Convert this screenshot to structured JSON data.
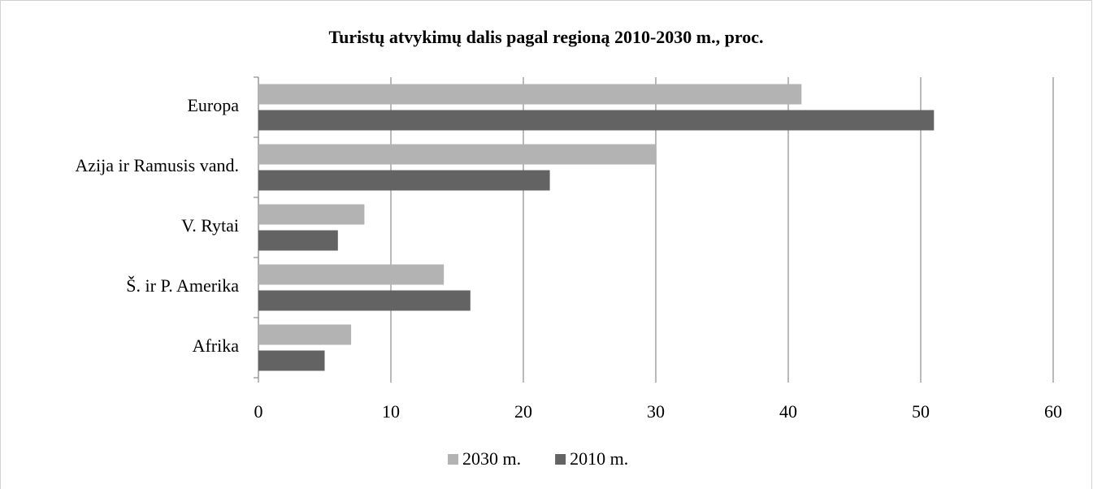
{
  "chart_data": {
    "type": "bar",
    "orientation": "horizontal",
    "title": "Turistų atvykimų dalis pagal regioną 2010-2030 m., proc.",
    "categories": [
      "Europa",
      "Azija ir Ramusis vand.",
      "V. Rytai",
      "Š. ir P. Amerika",
      "Afrika"
    ],
    "series": [
      {
        "name": "2030 m.",
        "color": "#b3b3b3",
        "values": [
          41,
          30,
          8,
          14,
          7
        ]
      },
      {
        "name": "2010 m.",
        "color": "#636363",
        "values": [
          51,
          22,
          6,
          16,
          5
        ]
      }
    ],
    "xlim": [
      0,
      60
    ],
    "xticks": [
      0,
      10,
      20,
      30,
      40,
      50,
      60
    ],
    "grid": true,
    "legend": "bottom"
  }
}
